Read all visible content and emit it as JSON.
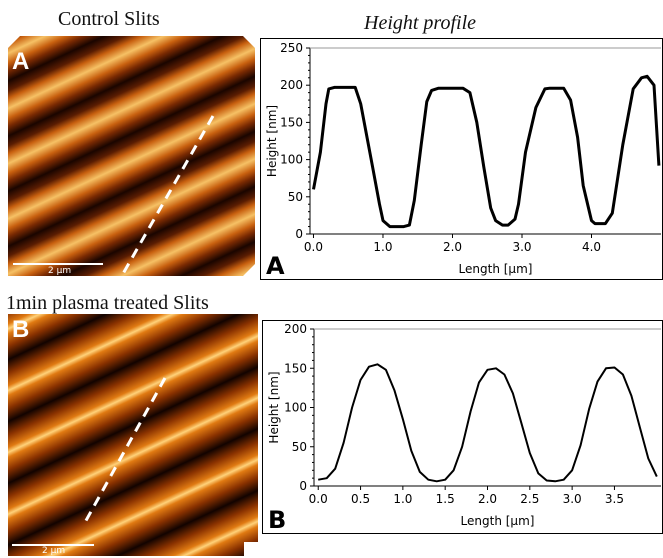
{
  "titles": {
    "control": "Control Slits",
    "height_profile": "Height profile",
    "plasma": "1min plasma treated Slits"
  },
  "afm_images": [
    {
      "label": "A",
      "scalebar": "2 µm",
      "type": "afm-height-map",
      "colors": [
        "#1a0500",
        "#7a2a02",
        "#c8600f",
        "#f6c165"
      ]
    },
    {
      "label": "B",
      "scalebar": "2 µm",
      "type": "afm-height-map",
      "colors": [
        "#120300",
        "#8a3200",
        "#d06a0a",
        "#ffd27a"
      ]
    }
  ],
  "chart_data": [
    {
      "type": "line",
      "panel_label": "A",
      "xlabel": "Length [µm]",
      "ylabel": "Height [nm]",
      "xlim": [
        -0.05,
        5.0
      ],
      "ylim": [
        0,
        250
      ],
      "xticks": [
        0.0,
        1.0,
        2.0,
        3.0,
        4.0
      ],
      "xtick_labels": [
        "0.0",
        "1.0",
        "2.0",
        "3.0",
        "4.0"
      ],
      "yticks": [
        0,
        50,
        100,
        150,
        200,
        250
      ],
      "ytick_labels": [
        "0",
        "50",
        "100",
        "150",
        "200",
        "250"
      ],
      "grid": false,
      "series": [
        {
          "x": [
            0.0,
            0.1,
            0.18,
            0.22,
            0.3,
            0.45,
            0.6,
            0.68,
            0.75,
            0.85,
            0.95,
            1.0,
            1.1,
            1.2,
            1.3,
            1.38,
            1.45,
            1.55,
            1.63,
            1.7,
            1.8,
            2.0,
            2.15,
            2.25,
            2.35,
            2.45,
            2.55,
            2.62,
            2.72,
            2.8,
            2.9,
            2.95,
            3.05,
            3.2,
            3.33,
            3.4,
            3.5,
            3.6,
            3.7,
            3.8,
            3.88,
            4.0,
            4.05,
            4.1,
            4.2,
            4.3,
            4.45,
            4.6,
            4.72,
            4.8,
            4.9,
            4.97
          ],
          "y": [
            60,
            110,
            175,
            195,
            197,
            197,
            197,
            175,
            140,
            90,
            40,
            18,
            10,
            10,
            10,
            12,
            45,
            120,
            178,
            193,
            196,
            196,
            196,
            190,
            150,
            90,
            35,
            18,
            12,
            12,
            20,
            40,
            110,
            170,
            195,
            196,
            196,
            196,
            180,
            130,
            65,
            18,
            14,
            14,
            14,
            28,
            120,
            195,
            210,
            212,
            200,
            92
          ]
        }
      ]
    },
    {
      "type": "line",
      "panel_label": "B",
      "xlabel": "Length [µm]",
      "ylabel": "Height [nm]",
      "xlim": [
        -0.05,
        4.05
      ],
      "ylim": [
        0,
        200
      ],
      "xticks": [
        0.0,
        0.5,
        1.0,
        1.5,
        2.0,
        2.5,
        3.0,
        3.5
      ],
      "xtick_labels": [
        "0.0",
        "0.5",
        "1.0",
        "1.5",
        "2.0",
        "2.5",
        "3.0",
        "3.5"
      ],
      "yticks": [
        0,
        50,
        100,
        150,
        200
      ],
      "ytick_labels": [
        "0",
        "50",
        "100",
        "150",
        "200"
      ],
      "grid": false,
      "series": [
        {
          "x": [
            0.0,
            0.1,
            0.2,
            0.3,
            0.4,
            0.5,
            0.6,
            0.7,
            0.8,
            0.9,
            1.0,
            1.1,
            1.2,
            1.3,
            1.4,
            1.5,
            1.6,
            1.7,
            1.8,
            1.9,
            2.0,
            2.1,
            2.2,
            2.3,
            2.4,
            2.5,
            2.6,
            2.7,
            2.8,
            2.9,
            3.0,
            3.1,
            3.2,
            3.3,
            3.4,
            3.5,
            3.6,
            3.7,
            3.8,
            3.9,
            4.0
          ],
          "y": [
            8,
            10,
            22,
            55,
            100,
            135,
            152,
            155,
            148,
            122,
            85,
            45,
            18,
            8,
            6,
            8,
            20,
            50,
            95,
            132,
            148,
            150,
            142,
            118,
            80,
            42,
            16,
            7,
            6,
            8,
            20,
            52,
            98,
            133,
            150,
            151,
            142,
            115,
            75,
            35,
            12
          ]
        }
      ]
    }
  ]
}
